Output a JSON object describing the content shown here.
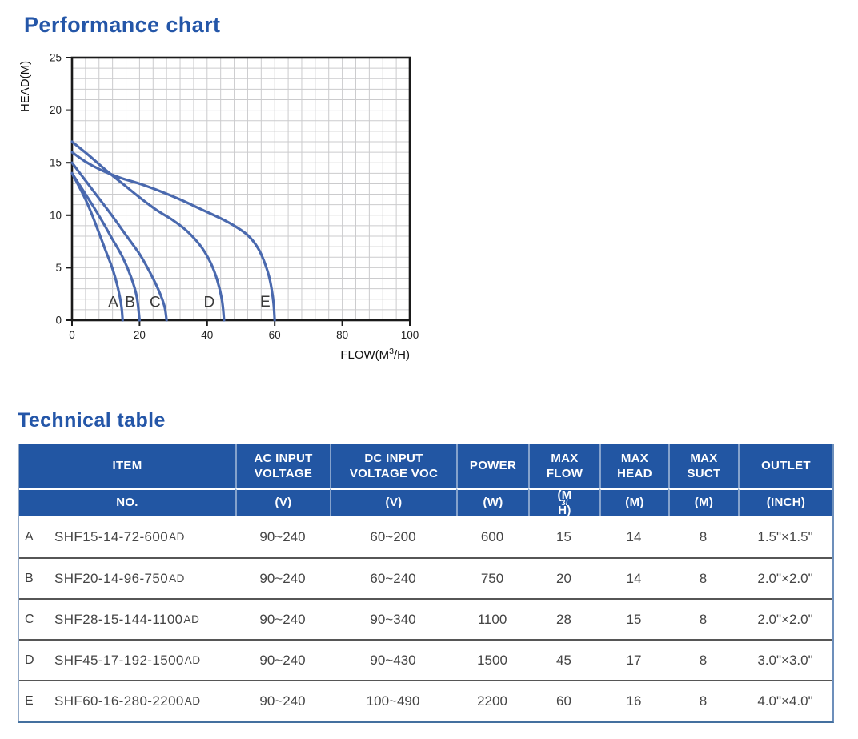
{
  "titles": {
    "performance": "Performance chart",
    "technical": "Technical table"
  },
  "colors": {
    "accent_blue": "#2456a8",
    "header_bg": "#2256a3",
    "curve_blue": "#4a69ae",
    "grid": "#cbcbcd",
    "axis": "#1a1a1a",
    "tick_text": "#222222",
    "curve_label_text": "#3a3a3a",
    "body_text": "#454545"
  },
  "chart_data": {
    "type": "line",
    "title": "Performance chart",
    "xlabel": {
      "pre": "FLOW(M",
      "sup": "3",
      "post": "/H)"
    },
    "ylabel": "HEAD(M)",
    "xlim": [
      0,
      100
    ],
    "ylim": [
      0,
      25
    ],
    "x_ticks": [
      0,
      20,
      40,
      60,
      80,
      100
    ],
    "y_ticks": [
      0,
      5,
      10,
      15,
      20,
      25
    ],
    "x_minor_step": 4,
    "y_minor_step": 1,
    "grid": true,
    "legend_position": "curve-labels-inline",
    "series": [
      {
        "name": "A",
        "max_head": 14,
        "max_flow": 15,
        "points": [
          [
            0,
            14
          ],
          [
            2,
            12.8
          ],
          [
            4,
            11.5
          ],
          [
            6,
            10
          ],
          [
            8,
            8.3
          ],
          [
            10,
            6.6
          ],
          [
            12,
            4.9
          ],
          [
            13.5,
            3.2
          ],
          [
            14.6,
            1.4
          ],
          [
            15,
            0
          ]
        ],
        "label_pos": [
          12.2,
          1.75
        ]
      },
      {
        "name": "B",
        "max_head": 14,
        "max_flow": 20,
        "points": [
          [
            0,
            14
          ],
          [
            3,
            12.5
          ],
          [
            6,
            11
          ],
          [
            9,
            9.4
          ],
          [
            12,
            7.7
          ],
          [
            15,
            6
          ],
          [
            17.5,
            4.1
          ],
          [
            19.2,
            2.2
          ],
          [
            20,
            0
          ]
        ],
        "label_pos": [
          17.2,
          1.75
        ]
      },
      {
        "name": "C",
        "max_head": 15,
        "max_flow": 28,
        "points": [
          [
            0,
            15
          ],
          [
            4,
            13.3
          ],
          [
            8,
            11.6
          ],
          [
            12,
            9.9
          ],
          [
            16,
            8.1
          ],
          [
            20,
            6.3
          ],
          [
            23,
            4.6
          ],
          [
            25.6,
            2.9
          ],
          [
            27.4,
            1.3
          ],
          [
            28,
            0
          ]
        ],
        "label_pos": [
          24.6,
          1.75
        ]
      },
      {
        "name": "D",
        "max_head": 17,
        "max_flow": 45,
        "points": [
          [
            0,
            17
          ],
          [
            5,
            15.7
          ],
          [
            10,
            14.3
          ],
          [
            15,
            13
          ],
          [
            20,
            11.7
          ],
          [
            25,
            10.5
          ],
          [
            30,
            9.5
          ],
          [
            34,
            8.5
          ],
          [
            38,
            7.1
          ],
          [
            41,
            5.5
          ],
          [
            43,
            3.8
          ],
          [
            44.4,
            1.9
          ],
          [
            45,
            0
          ]
        ],
        "label_pos": [
          40.6,
          1.75
        ]
      },
      {
        "name": "E",
        "max_head": 16,
        "max_flow": 60,
        "points": [
          [
            0,
            16
          ],
          [
            4,
            15.1
          ],
          [
            8,
            14.4
          ],
          [
            14,
            13.6
          ],
          [
            20,
            13
          ],
          [
            26,
            12.3
          ],
          [
            32,
            11.5
          ],
          [
            38,
            10.6
          ],
          [
            44,
            9.7
          ],
          [
            48,
            9
          ],
          [
            52,
            8.1
          ],
          [
            55,
            6.9
          ],
          [
            57,
            5.5
          ],
          [
            58.6,
            3.8
          ],
          [
            59.6,
            1.8
          ],
          [
            60,
            0
          ]
        ],
        "label_pos": [
          57.2,
          1.8
        ]
      }
    ]
  },
  "table": {
    "header": {
      "item_line1": "ITEM",
      "item_line2": "NO.",
      "cols": [
        {
          "key": "ac",
          "line1": "AC INPUT",
          "line2": "VOLTAGE",
          "unit": "(V)"
        },
        {
          "key": "dc",
          "line1": "DC INPUT",
          "line2": "VOLTAGE VOC",
          "unit": "(V)"
        },
        {
          "key": "power",
          "line1": "POWER",
          "line2": "",
          "unit": "(W)"
        },
        {
          "key": "max_flow",
          "line1": "MAX",
          "line2": "FLOW",
          "unit": {
            "pre": "(M",
            "sup": "3/",
            "post": "H)"
          }
        },
        {
          "key": "max_head",
          "line1": "MAX",
          "line2": "HEAD",
          "unit": "(M)"
        },
        {
          "key": "max_suct",
          "line1": "MAX",
          "line2": "SUCT",
          "unit": "(M)"
        },
        {
          "key": "outlet",
          "line1": "OUTLET",
          "line2": "",
          "unit": "(INCH)"
        }
      ]
    },
    "rows": [
      {
        "letter": "A",
        "model": "SHF15-14-72-600",
        "model_suffix": "AD",
        "ac": "90~240",
        "dc": "60~200",
        "power": "600",
        "max_flow": "15",
        "max_head": "14",
        "max_suct": "8",
        "outlet": "1.5\"×1.5\""
      },
      {
        "letter": "B",
        "model": "SHF20-14-96-750",
        "model_suffix": "AD",
        "ac": "90~240",
        "dc": "60~240",
        "power": "750",
        "max_flow": "20",
        "max_head": "14",
        "max_suct": "8",
        "outlet": "2.0\"×2.0\""
      },
      {
        "letter": "C",
        "model": "SHF28-15-144-1100",
        "model_suffix": "AD",
        "ac": "90~240",
        "dc": "90~340",
        "power": "1100",
        "max_flow": "28",
        "max_head": "15",
        "max_suct": "8",
        "outlet": "2.0\"×2.0\""
      },
      {
        "letter": "D",
        "model": "SHF45-17-192-1500",
        "model_suffix": "AD",
        "ac": "90~240",
        "dc": "90~430",
        "power": "1500",
        "max_flow": "45",
        "max_head": "17",
        "max_suct": "8",
        "outlet": "3.0\"×3.0\""
      },
      {
        "letter": "E",
        "model": "SHF60-16-280-2200",
        "model_suffix": "AD",
        "ac": "90~240",
        "dc": "100~490",
        "power": "2200",
        "max_flow": "60",
        "max_head": "16",
        "max_suct": "8",
        "outlet": "4.0\"×4.0\""
      }
    ]
  }
}
